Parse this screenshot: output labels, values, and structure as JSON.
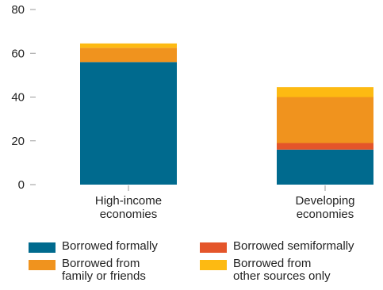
{
  "chart_data": {
    "type": "bar",
    "stacked": true,
    "categories": [
      "High-income\neconomies",
      "Developing\neconomies"
    ],
    "series": [
      {
        "name": "Borrowed formally",
        "color": "#006a8e",
        "values": [
          56,
          16
        ]
      },
      {
        "name": "Borrowed semiformally",
        "color": "#e4552a",
        "values": [
          0,
          3
        ]
      },
      {
        "name": "Borrowed from\nfamily or friends",
        "color": "#f0931e",
        "values": [
          6.5,
          21
        ]
      },
      {
        "name": "Borrowed from\nother sources only",
        "color": "#fdba12",
        "values": [
          2,
          4.5
        ]
      }
    ],
    "yticks": [
      0,
      20,
      40,
      60,
      80
    ],
    "ylim": [
      0,
      80
    ],
    "title": "",
    "xlabel": "",
    "ylabel": "",
    "grid": false,
    "legend_position": "bottom"
  },
  "legend": {
    "items": [
      {
        "label": "Borrowed formally",
        "color": "#006a8e"
      },
      {
        "label": "Borrowed semiformally",
        "color": "#e4552a"
      },
      {
        "label": "Borrowed from\nfamily or friends",
        "color": "#f0931e"
      },
      {
        "label": "Borrowed from\nother sources only",
        "color": "#fdba12"
      }
    ]
  }
}
